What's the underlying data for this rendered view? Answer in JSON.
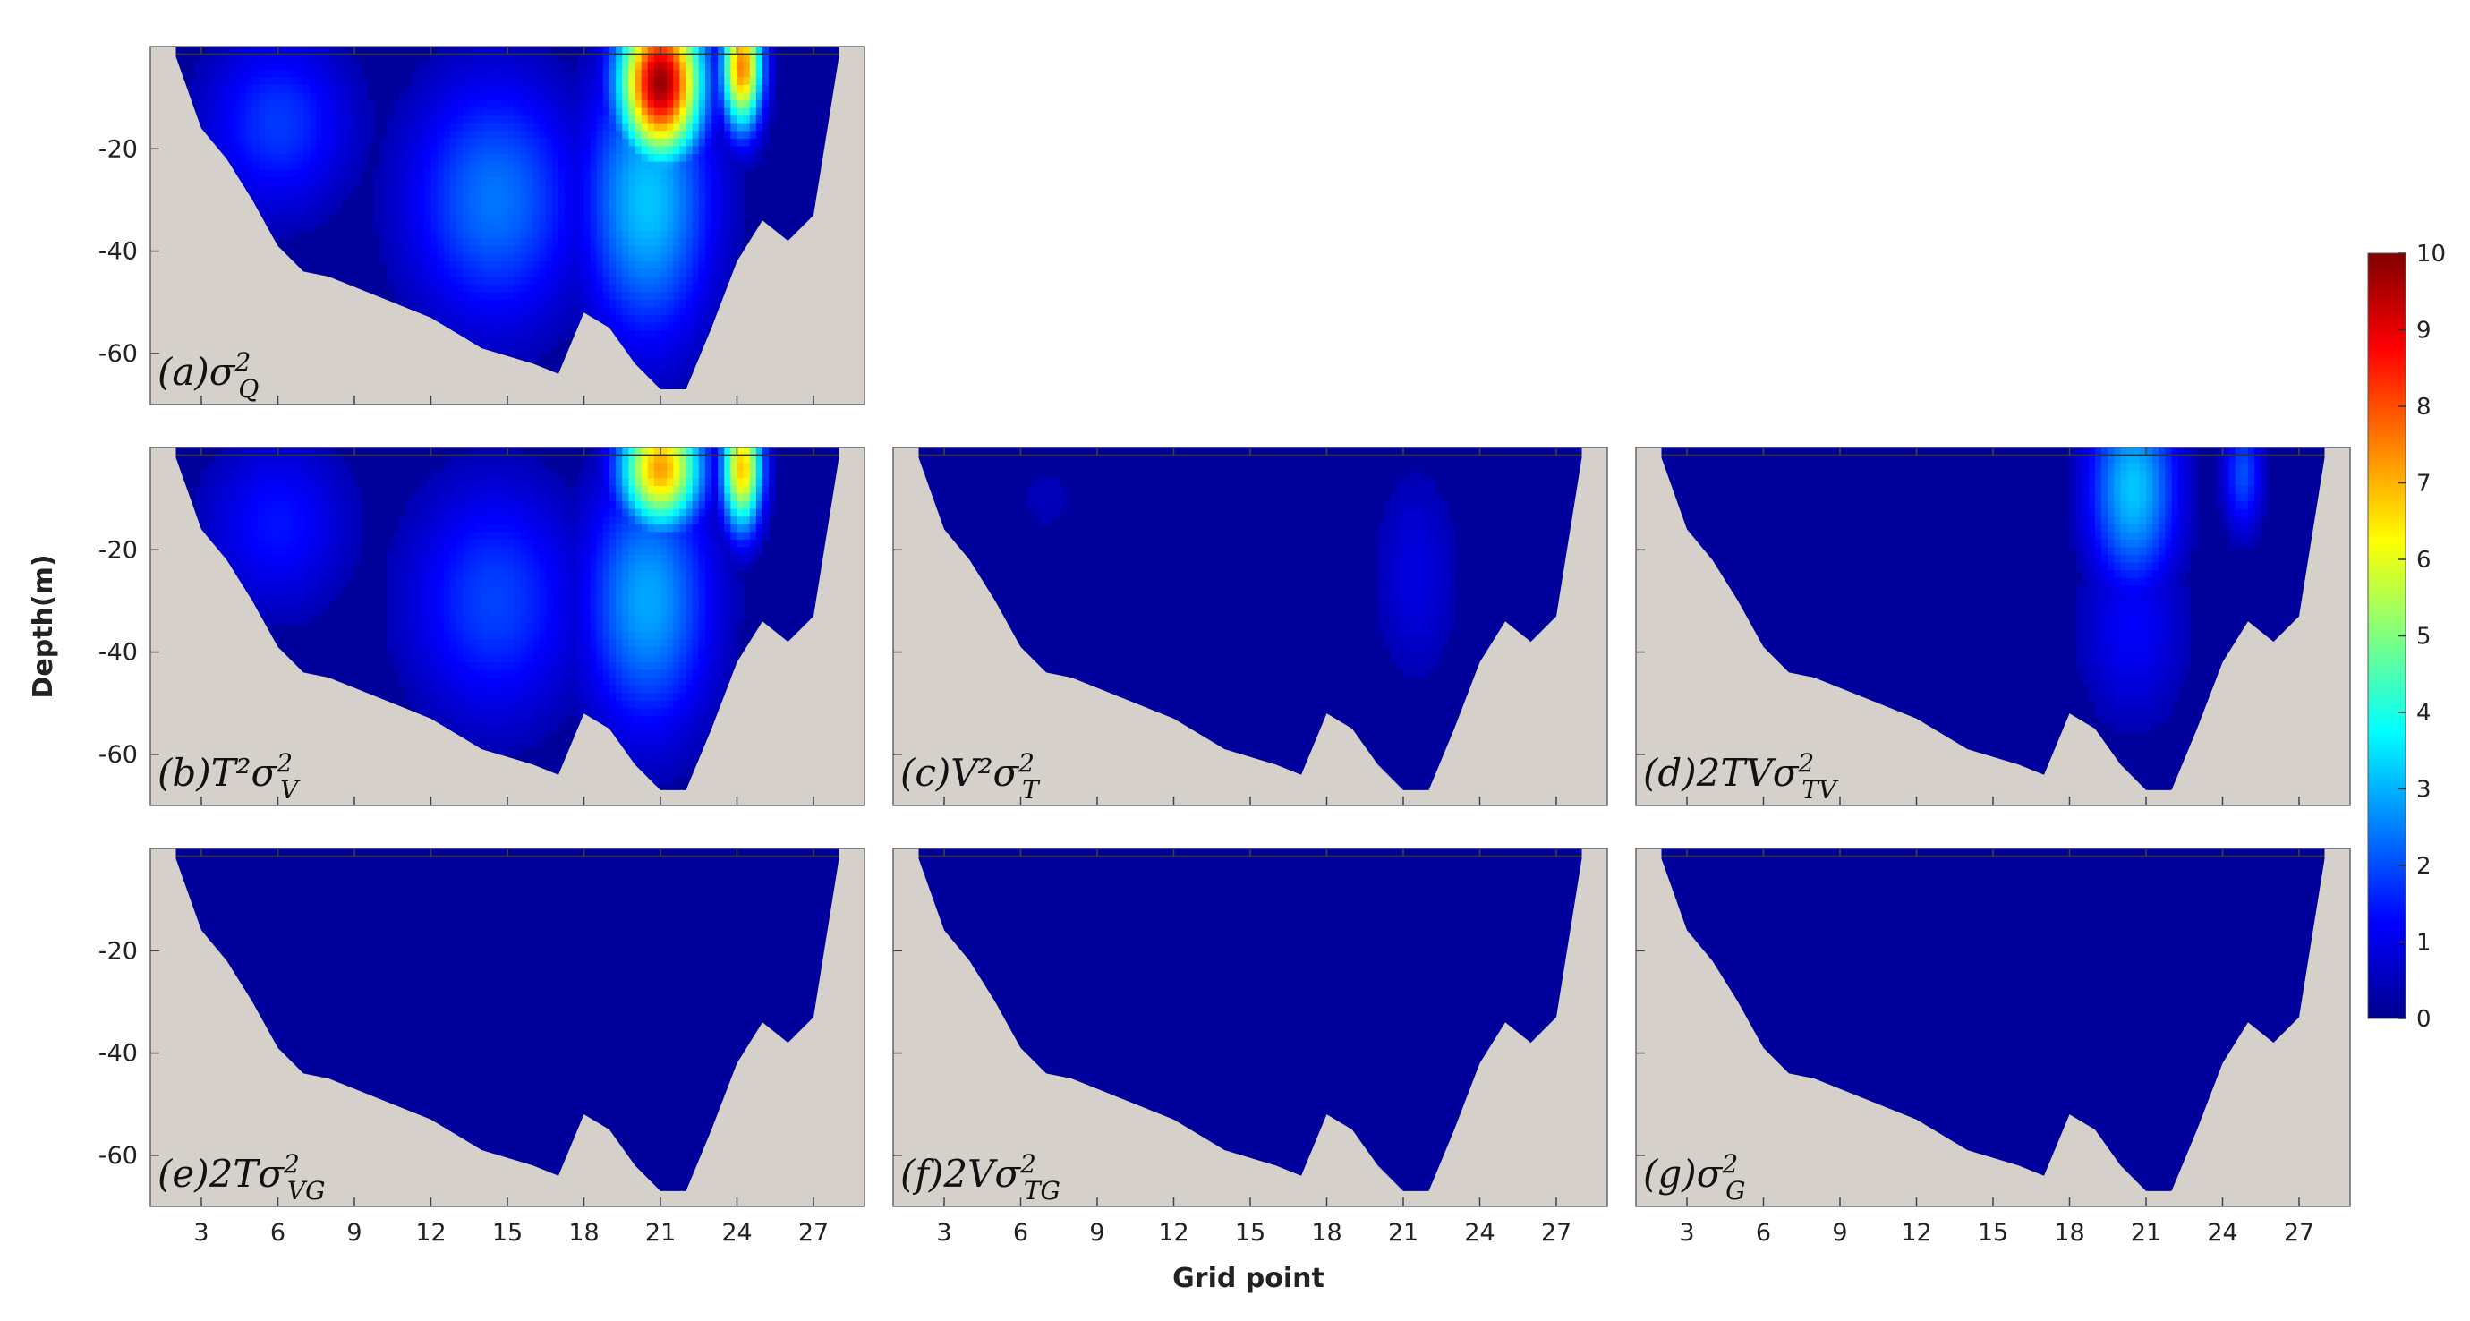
{
  "chart_data": {
    "type": "heatmap",
    "xlabel": "Grid point",
    "ylabel": "Depth(m)",
    "x_ticks": [
      3,
      6,
      9,
      12,
      15,
      18,
      21,
      24,
      27
    ],
    "y_ticks": [
      -20,
      -40,
      -60
    ],
    "xlim": [
      1,
      29
    ],
    "ylim": [
      -70,
      0
    ],
    "colormap": "jet",
    "colorbar": {
      "min": 0,
      "max": 10,
      "ticks": [
        "0",
        "1",
        "2",
        "3",
        "4",
        "5",
        "6",
        "7",
        "8",
        "9",
        "10"
      ],
      "placement": "right"
    },
    "land_color": "#d5d0ca",
    "bathymetry": {
      "x": [
        2,
        3,
        4,
        5,
        6,
        7,
        8,
        10,
        12,
        14,
        16,
        17,
        18,
        19,
        20,
        21,
        22,
        23,
        24,
        25,
        26,
        27,
        28
      ],
      "depth": [
        -2,
        -16,
        -22,
        -30,
        -39,
        -44,
        -45,
        -49,
        -53,
        -59,
        -62,
        -64,
        -52,
        -55,
        -62,
        -67,
        -67,
        -55,
        -42,
        -34,
        -38,
        -33,
        -2
      ]
    },
    "panels": [
      {
        "id": "a",
        "label_prefix": "(a)",
        "label_expr": "σ",
        "sub": "Q",
        "hot_spots": [
          {
            "x": 21.0,
            "depth": -7,
            "value": 9.8,
            "sx": 1.6,
            "sy": 15
          },
          {
            "x": 24.2,
            "depth": -4,
            "value": 7.5,
            "sx": 0.8,
            "sy": 12
          },
          {
            "x": 20.5,
            "depth": -30,
            "value": 3.2,
            "sx": 2.6,
            "sy": 28
          },
          {
            "x": 14.5,
            "depth": -30,
            "value": 2.4,
            "sx": 3.5,
            "sy": 25
          },
          {
            "x": 6.0,
            "depth": -15,
            "value": 1.8,
            "sx": 3,
            "sy": 18
          }
        ]
      },
      {
        "id": "b",
        "label_prefix": "(b)",
        "label_expr": "T²σ",
        "sub": "V",
        "hot_spots": [
          {
            "x": 21.0,
            "depth": -4,
            "value": 7.2,
            "sx": 1.6,
            "sy": 12
          },
          {
            "x": 24.2,
            "depth": -4,
            "value": 6.8,
            "sx": 0.8,
            "sy": 12
          },
          {
            "x": 20.5,
            "depth": -30,
            "value": 2.9,
            "sx": 2.6,
            "sy": 26
          },
          {
            "x": 14.5,
            "depth": -30,
            "value": 1.9,
            "sx": 3.5,
            "sy": 24
          },
          {
            "x": 6.0,
            "depth": -15,
            "value": 1.4,
            "sx": 3,
            "sy": 18
          }
        ]
      },
      {
        "id": "c",
        "label_prefix": "(c)",
        "label_expr": "V²σ",
        "sub": "T",
        "hot_spots": [
          {
            "x": 21.5,
            "depth": -25,
            "value": 0.9,
            "sx": 1.8,
            "sy": 22
          },
          {
            "x": 7.0,
            "depth": -10,
            "value": 0.5,
            "sx": 1.5,
            "sy": 10
          }
        ]
      },
      {
        "id": "d",
        "label_prefix": "(d)",
        "label_expr": "2TVσ",
        "sub": "TV",
        "hot_spots": [
          {
            "x": 20.5,
            "depth": -8,
            "value": 3.2,
            "sx": 1.8,
            "sy": 20
          },
          {
            "x": 24.8,
            "depth": -5,
            "value": 2.0,
            "sx": 0.8,
            "sy": 12
          },
          {
            "x": 20.5,
            "depth": -35,
            "value": 1.2,
            "sx": 2.2,
            "sy": 20
          }
        ]
      },
      {
        "id": "e",
        "label_prefix": "(e)",
        "label_expr": "2Tσ",
        "sub": "VG",
        "hot_spots": []
      },
      {
        "id": "f",
        "label_prefix": "(f)",
        "label_expr": "2Vσ",
        "sub": "TG",
        "hot_spots": []
      },
      {
        "id": "g",
        "label_prefix": "(g)",
        "label_expr": "σ",
        "sub": "G",
        "hot_spots": []
      }
    ]
  }
}
